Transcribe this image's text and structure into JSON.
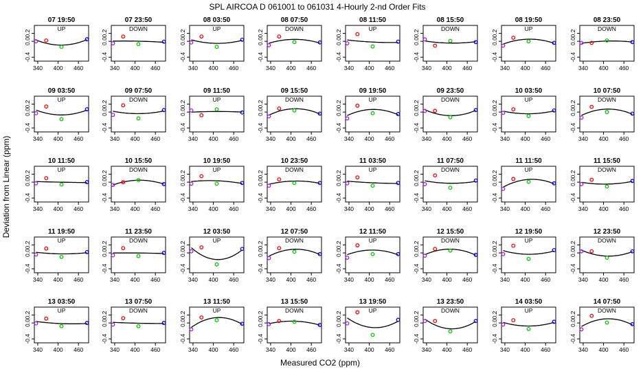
{
  "title": "SPL   AIRCOA D   061001 to 061031   4-Hourly 2-nd Order Fits",
  "chart_data": {
    "type": "scatter",
    "title": "SPL   AIRCOA D   061001 to 061031   4-Hourly 2-nd Order Fits",
    "xlabel": "Measured CO2 (ppm)",
    "ylabel": "Deviation from Linear (ppm)",
    "xlim": [
      330,
      490
    ],
    "ylim": [
      -0.5,
      0.4
    ],
    "xticks": [
      340,
      400,
      460
    ],
    "yticks": [
      -0.4,
      0.0,
      0.2
    ],
    "ytick_labels": [
      "-0.4",
      "0.0",
      "0.2"
    ],
    "grid": false,
    "standard_x": [
      335,
      365,
      410,
      485
    ],
    "standard_colors": [
      "#a020f0",
      "#ff0000",
      "#00cc00",
      "#0000ff"
    ],
    "panels": [
      {
        "label": "07 19:50",
        "dir": "UP",
        "y": [
          0.0,
          0.02,
          -0.14,
          0.05
        ]
      },
      {
        "label": "07 23:50",
        "dir": "DOWN",
        "y": [
          -0.05,
          0.12,
          -0.07,
          -0.01
        ]
      },
      {
        "label": "08 03:50",
        "dir": "UP",
        "y": [
          -0.03,
          0.12,
          -0.14,
          0.04
        ]
      },
      {
        "label": "08 07:50",
        "dir": "DOWN",
        "y": [
          -0.1,
          0.12,
          -0.02,
          -0.03
        ]
      },
      {
        "label": "08 11:50",
        "dir": "UP",
        "y": [
          -0.05,
          0.18,
          -0.13,
          -0.01
        ]
      },
      {
        "label": "08 15:50",
        "dir": "DOWN",
        "y": [
          0.05,
          -0.11,
          0.01,
          -0.02
        ]
      },
      {
        "label": "08 19:50",
        "dir": "UP",
        "y": [
          -0.11,
          0.09,
          0.0,
          -0.04
        ]
      },
      {
        "label": "08 23:50",
        "dir": "DOWN",
        "y": [
          -0.04,
          -0.04,
          0.02,
          -0.02
        ]
      },
      {
        "label": "09 03:50",
        "dir": "UP",
        "y": [
          -0.03,
          0.14,
          -0.18,
          0.07
        ]
      },
      {
        "label": "09 07:50",
        "dir": "DOWN",
        "y": [
          -0.07,
          0.17,
          -0.16,
          0.05
        ]
      },
      {
        "label": "09 11:50",
        "dir": "UP",
        "y": [
          0.04,
          -0.08,
          0.07,
          -0.01
        ]
      },
      {
        "label": "09 15:50",
        "dir": "DOWN",
        "y": [
          -0.11,
          0.09,
          0.04,
          -0.04
        ]
      },
      {
        "label": "09 19:50",
        "dir": "UP",
        "y": [
          -0.16,
          0.16,
          -0.03,
          -0.05
        ]
      },
      {
        "label": "09 23:50",
        "dir": "DOWN",
        "y": [
          0.03,
          0.03,
          -0.13,
          0.05
        ]
      },
      {
        "label": "10 03:50",
        "dir": "UP",
        "y": [
          -0.02,
          0.07,
          -0.1,
          0.04
        ]
      },
      {
        "label": "10 07:50",
        "dir": "DOWN",
        "y": [
          -0.14,
          0.13,
          0.0,
          -0.04
        ]
      },
      {
        "label": "10 11:50",
        "dir": "UP",
        "y": [
          -0.03,
          0.1,
          -0.06,
          0.0
        ]
      },
      {
        "label": "10 15:50",
        "dir": "DOWN",
        "y": [
          -0.07,
          0.0,
          0.05,
          -0.05
        ]
      },
      {
        "label": "10 19:50",
        "dir": "UP",
        "y": [
          -0.04,
          0.15,
          -0.04,
          -0.02
        ]
      },
      {
        "label": "10 23:50",
        "dir": "DOWN",
        "y": [
          -0.09,
          0.07,
          -0.02,
          -0.02
        ]
      },
      {
        "label": "11 03:50",
        "dir": "UP",
        "y": [
          -0.03,
          0.12,
          -0.09,
          -0.02
        ]
      },
      {
        "label": "11 07:50",
        "dir": "DOWN",
        "y": [
          -0.05,
          0.17,
          -0.14,
          0.04
        ]
      },
      {
        "label": "11 11:50",
        "dir": "UP",
        "y": [
          -0.17,
          0.08,
          0.01,
          -0.03
        ]
      },
      {
        "label": "11 15:50",
        "dir": "DOWN",
        "y": [
          -0.05,
          0.06,
          -0.11,
          0.03
        ]
      },
      {
        "label": "11 19:50",
        "dir": "UP",
        "y": [
          -0.04,
          0.11,
          -0.1,
          0.02
        ]
      },
      {
        "label": "11 23:50",
        "dir": "DOWN",
        "y": [
          -0.06,
          0.12,
          -0.08,
          0.0
        ]
      },
      {
        "label": "12 03:50",
        "dir": "UP",
        "y": [
          0.04,
          0.14,
          -0.29,
          0.1
        ]
      },
      {
        "label": "12 07:50",
        "dir": "DOWN",
        "y": [
          -0.13,
          0.12,
          0.03,
          -0.03
        ]
      },
      {
        "label": "12 11:50",
        "dir": "UP",
        "y": [
          -0.12,
          0.19,
          -0.03,
          -0.03
        ]
      },
      {
        "label": "12 15:50",
        "dir": "DOWN",
        "y": [
          -0.07,
          0.1,
          0.06,
          -0.05
        ]
      },
      {
        "label": "12 19:50",
        "dir": "UP",
        "y": [
          -0.03,
          0.18,
          -0.15,
          0.07
        ]
      },
      {
        "label": "12 23:50",
        "dir": "DOWN",
        "y": [
          0.04,
          0.04,
          -0.12,
          0.04
        ]
      },
      {
        "label": "13 03:50",
        "dir": "UP",
        "y": [
          -0.01,
          0.11,
          -0.08,
          0.0
        ]
      },
      {
        "label": "13 07:50",
        "dir": "DOWN",
        "y": [
          -0.04,
          0.12,
          -0.08,
          0.0
        ]
      },
      {
        "label": "13 11:50",
        "dir": "UP",
        "y": [
          -0.16,
          0.14,
          0.07,
          -0.02
        ]
      },
      {
        "label": "13 15:50",
        "dir": "DOWN",
        "y": [
          -0.03,
          0.05,
          0.03,
          -0.05
        ]
      },
      {
        "label": "13 19:50",
        "dir": "UP",
        "y": [
          -0.01,
          0.27,
          -0.3,
          0.08
        ]
      },
      {
        "label": "13 23:50",
        "dir": "DOWN",
        "y": [
          0.05,
          0.05,
          -0.21,
          0.05
        ]
      },
      {
        "label": "14 03:50",
        "dir": "UP",
        "y": [
          -0.04,
          0.07,
          -0.15,
          0.03
        ]
      },
      {
        "label": "14 07:50",
        "dir": "DOWN",
        "y": [
          -0.16,
          0.18,
          0.01,
          -0.03
        ]
      }
    ]
  }
}
